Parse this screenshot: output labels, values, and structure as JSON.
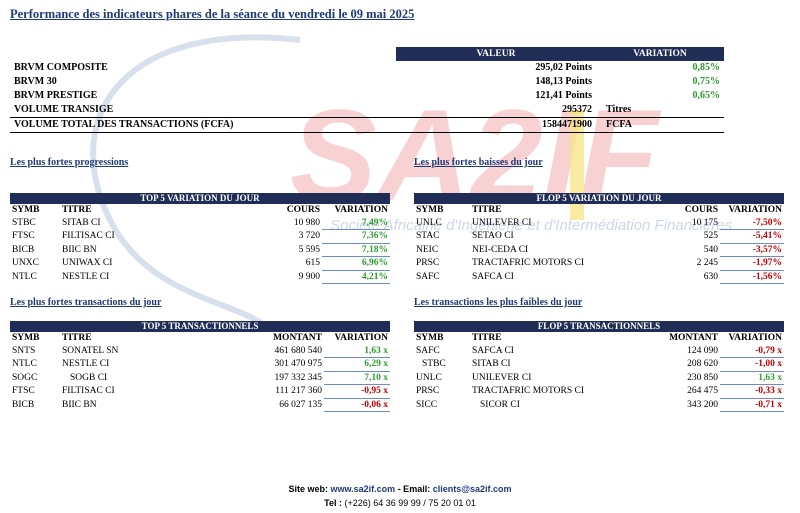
{
  "title": "Performance des indicateurs phares de la séance du vendredi le 09 mai 2025",
  "watermark": {
    "logo": "SA2IF",
    "tagline": "Société Africaine d'Ingénierie et d'Intermédiation Financières"
  },
  "indices": {
    "headers": {
      "valeur": "VALEUR",
      "variation": "VARIATION"
    },
    "rows": [
      {
        "label": "BRVM COMPOSITE",
        "value": "295,02 Points",
        "variation": "0,85%"
      },
      {
        "label": "BRVM 30",
        "value": "148,13 Points",
        "variation": "0,75%"
      },
      {
        "label": "BRVM PRESTIGE",
        "value": "121,41 Points",
        "variation": "0,65%"
      }
    ],
    "volume": {
      "label": "VOLUME TRANSIGE",
      "value": "295372",
      "unit": "Titres"
    },
    "total": {
      "label": "VOLUME TOTAL DES TRANSACTIONS (FCFA)",
      "value": "1584471900",
      "unit": "FCFA"
    }
  },
  "sections": {
    "progressions": "Les plus fortes progressions",
    "baisses": "Les plus fortes baisses du jour",
    "fortes_transactions": "Les plus fortes transactions du jour",
    "faibles_transactions": "Les transactions les plus faibles du jour"
  },
  "top5_var": {
    "title": "TOP 5 VARIATION DU JOUR",
    "cols": [
      "SYMB",
      "TITRE",
      "COURS",
      "VARIATION"
    ],
    "rows": [
      [
        "STBC",
        "SITAB CI",
        "10 980",
        "7,49%"
      ],
      [
        "FTSC",
        "FILTISAC CI",
        "3 720",
        "7,36%"
      ],
      [
        "BICB",
        "BIIC BN",
        "5 595",
        "7,18%"
      ],
      [
        "UNXC",
        "UNIWAX CI",
        "615",
        "6,96%"
      ],
      [
        "NTLC",
        "NESTLE CI",
        "9 900",
        "4,21%"
      ]
    ]
  },
  "flop5_var": {
    "title": "FLOP 5 VARIATION DU JOUR",
    "cols": [
      "SYMB",
      "TITRE",
      "COURS",
      "VARIATION"
    ],
    "rows": [
      [
        "UNLC",
        "UNILEVER CI",
        "10 175",
        "-7,50%"
      ],
      [
        "STAC",
        "SETAO CI",
        "525",
        "-5,41%"
      ],
      [
        "NEIC",
        "NEI-CEDA CI",
        "540",
        "-3,57%"
      ],
      [
        "PRSC",
        "TRACTAFRIC MOTORS CI",
        "2 245",
        "-1,97%"
      ],
      [
        "SAFC",
        "SAFCA CI",
        "630",
        "-1,56%"
      ]
    ]
  },
  "top5_tr": {
    "title": "TOP 5 TRANSACTIONNELS",
    "cols": [
      "SYMB",
      "TITRE",
      "MONTANT",
      "VARIATION"
    ],
    "rows": [
      [
        "SNTS",
        "SONATEL SN",
        "461 680 540",
        "1,63 x"
      ],
      [
        "NTLC",
        "NESTLE CI",
        "301 470 975",
        "6,29 x"
      ],
      [
        "SOGC",
        "SOGB CI",
        "197 332 345",
        "7,10 x"
      ],
      [
        "FTSC",
        "FILTISAC CI",
        "111 217 360",
        "-0,95 x"
      ],
      [
        "BICB",
        "BIIC BN",
        "66 027 135",
        "-0,06 x"
      ]
    ]
  },
  "flop5_tr": {
    "title": "FLOP 5 TRANSACTIONNELS",
    "cols": [
      "SYMB",
      "TITRE",
      "MONTANT",
      "VARIATION"
    ],
    "rows": [
      [
        "SAFC",
        "SAFCA CI",
        "124 090",
        "-0,79 x"
      ],
      [
        "STBC",
        "SITAB CI",
        "208 620",
        "-1,00 x"
      ],
      [
        "UNLC",
        "UNILEVER CI",
        "230 850",
        "1,63 x"
      ],
      [
        "PRSC",
        "TRACTAFRIC MOTORS CI",
        "264 475",
        "-0,33 x"
      ],
      [
        "SICC",
        "SICOR CI",
        "343 200",
        "-0,71 x"
      ]
    ]
  },
  "footer": {
    "site_label": "Site web:",
    "site": "www.sa2if.com",
    "email_label": "- Email:",
    "email": "clients@sa2if.com",
    "tel_label": "Tel :",
    "tel": "(+226) 64 36 99 99 / 75 20 01 01"
  },
  "colors": {
    "header_bg": "#1f2d57",
    "up": "#2e9e2e",
    "down": "#c00000",
    "title": "#1f3a78",
    "watermark_red": "#f2b3b3",
    "watermark_yellow": "#f7e47a"
  }
}
